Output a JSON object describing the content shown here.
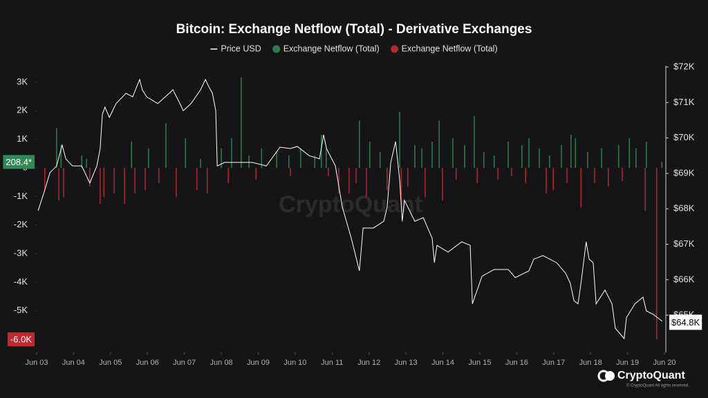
{
  "chart_data": {
    "type": "combo",
    "title": "Bitcoin: Exchange Netflow (Total) - Derivative Exchanges",
    "watermark": "CryptoQuant",
    "brand": "CryptoQuant",
    "copyright": "© CryptoQuant All rights reserved.",
    "xlim": [
      0,
      17
    ],
    "xticks": [
      {
        "value": 0,
        "label": "Jun 03"
      },
      {
        "value": 1,
        "label": "Jun 04"
      },
      {
        "value": 2,
        "label": "Jun 05"
      },
      {
        "value": 3,
        "label": "Jun 06"
      },
      {
        "value": 4,
        "label": "Jun 07"
      },
      {
        "value": 5,
        "label": "Jun 08"
      },
      {
        "value": 6,
        "label": "Jun 09"
      },
      {
        "value": 7,
        "label": "Jun 10"
      },
      {
        "value": 8,
        "label": "Jun 11"
      },
      {
        "value": 9,
        "label": "Jun 12"
      },
      {
        "value": 10,
        "label": "Jun 13"
      },
      {
        "value": 11,
        "label": "Jun 14"
      },
      {
        "value": 12,
        "label": "Jun 15"
      },
      {
        "value": 13,
        "label": "Jun 16"
      },
      {
        "value": 14,
        "label": "Jun 17"
      },
      {
        "value": 15,
        "label": "Jun 18"
      },
      {
        "value": 16,
        "label": "Jun 19"
      },
      {
        "value": 17,
        "label": "Jun 20"
      }
    ],
    "ylim": [
      -6460,
      3580
    ],
    "yticks": [
      {
        "value": 3000,
        "label": "3K"
      },
      {
        "value": 2000,
        "label": "2K"
      },
      {
        "value": 1000,
        "label": "1K"
      },
      0,
      {
        "value": -1000,
        "label": "-1K"
      },
      {
        "value": -2000,
        "label": "-2K"
      },
      {
        "value": -3000,
        "label": "-3K"
      },
      {
        "value": -4000,
        "label": "-4K"
      },
      {
        "value": -5000,
        "label": "-5K"
      }
    ],
    "y2lim": [
      63950,
      72040
    ],
    "y2ticks": [
      {
        "value": 72000,
        "label": "$72K"
      },
      {
        "value": 71000,
        "label": "$71K"
      },
      {
        "value": 70000,
        "label": "$70K"
      },
      {
        "value": 69000,
        "label": "$69K"
      },
      {
        "value": 68000,
        "label": "$68K"
      },
      {
        "value": 67000,
        "label": "$67K"
      },
      {
        "value": 66000,
        "label": "$66K"
      },
      {
        "value": 65000,
        "label": "$65K"
      }
    ],
    "grid": false,
    "badges": [
      {
        "value": 208.4,
        "label": "208.4*",
        "color": "#2e8b57"
      },
      {
        "value": -6000,
        "label": "-6.0K",
        "color": "#c0282e"
      }
    ],
    "y2_badges": [
      {
        "value": 64800,
        "label": "$64.8K",
        "color": "#ffffff"
      }
    ],
    "series": [
      {
        "name": "Price USD",
        "type": "line",
        "axis": "y2",
        "color": "#ffffff",
        "x": [
          0.04,
          0.19,
          0.36,
          0.54,
          0.69,
          0.79,
          0.97,
          1.22,
          1.44,
          1.63,
          1.72,
          1.78,
          1.85,
          1.97,
          2.15,
          2.42,
          2.6,
          2.79,
          2.86,
          2.98,
          3.28,
          3.59,
          3.69,
          3.88,
          3.97,
          4.18,
          4.44,
          4.57,
          4.66,
          4.76,
          4.85,
          4.89,
          5.09,
          5.47,
          5.84,
          6.22,
          6.59,
          6.87,
          7.06,
          7.38,
          7.66,
          7.77,
          7.85,
          8.09,
          8.28,
          8.52,
          8.74,
          8.84,
          9.12,
          9.4,
          9.49,
          9.59,
          9.72,
          9.83,
          9.9,
          9.96,
          10.24,
          10.47,
          10.71,
          10.77,
          10.84,
          11.14,
          11.51,
          11.74,
          11.8,
          12.06,
          12.39,
          12.77,
          12.96,
          13.33,
          13.46,
          13.71,
          14.08,
          14.32,
          14.45,
          14.55,
          14.66,
          14.74,
          14.88,
          14.96,
          15.07,
          15.15,
          15.39,
          15.58,
          15.67,
          15.91,
          15.97,
          16.2,
          16.42,
          16.51,
          16.7,
          16.94
        ],
        "values": [
          67950,
          68430,
          69020,
          69210,
          69800,
          69410,
          69210,
          69210,
          68730,
          69210,
          69700,
          70670,
          70870,
          70580,
          70970,
          71260,
          71160,
          71650,
          71360,
          71160,
          70970,
          71260,
          71360,
          70970,
          70770,
          70970,
          71360,
          71650,
          71450,
          71260,
          70770,
          69210,
          69310,
          69310,
          69310,
          69210,
          69740,
          69700,
          69760,
          69500,
          69410,
          70090,
          69700,
          69210,
          68040,
          67170,
          66250,
          67460,
          67460,
          67650,
          68040,
          69310,
          69900,
          68820,
          67650,
          68240,
          67650,
          67750,
          67170,
          66480,
          66970,
          66780,
          67070,
          66970,
          65320,
          66100,
          66290,
          66290,
          66060,
          66250,
          66580,
          66680,
          66480,
          66190,
          65900,
          65410,
          65320,
          65900,
          67070,
          66580,
          66480,
          65320,
          65710,
          65320,
          64630,
          64340,
          64930,
          65320,
          65510,
          65120,
          65020,
          64830
        ]
      },
      {
        "name": "Exchange Netflow (Total)",
        "type": "bar",
        "color": "#2e7d4f",
        "x": [
          0.54,
          0.66,
          1.22,
          1.35,
          2.57,
          3.03,
          3.5,
          4.03,
          4.44,
          5.0,
          5.28,
          5.54,
          5.75,
          6.09,
          6.5,
          6.83,
          7.15,
          7.53,
          7.71,
          7.84,
          8.74,
          9.02,
          9.3,
          9.83,
          10.24,
          10.43,
          10.71,
          10.9,
          11.27,
          11.59,
          11.85,
          12.11,
          12.39,
          12.77,
          13.14,
          13.33,
          13.61,
          13.89,
          14.21,
          14.47,
          14.59,
          14.92,
          15.3,
          15.76,
          16.05,
          16.23,
          16.51,
          16.93
        ],
        "values": [
          1400,
          800,
          435,
          315,
          920,
          680,
          1570,
          1040,
          315,
          680,
          1040,
          3170,
          435,
          680,
          555,
          435,
          680,
          435,
          1160,
          680,
          1650,
          920,
          555,
          1960,
          800,
          680,
          920,
          1650,
          1040,
          800,
          1820,
          555,
          435,
          920,
          800,
          1040,
          680,
          435,
          800,
          1160,
          1040,
          555,
          680,
          800,
          1040,
          680,
          920,
          208.4
        ]
      },
      {
        "name": "Exchange Netflow (Total)",
        "type": "bar",
        "color": "#b3262e",
        "x": [
          0.22,
          0.6,
          0.73,
          1.44,
          1.72,
          1.82,
          2.1,
          2.38,
          2.66,
          2.94,
          3.31,
          3.78,
          4.34,
          4.62,
          5.19,
          5.94,
          6.87,
          7.9,
          8.18,
          8.46,
          8.65,
          8.93,
          9.49,
          9.87,
          10.05,
          10.52,
          10.99,
          11.36,
          11.93,
          12.49,
          12.86,
          13.24,
          13.8,
          13.99,
          14.36,
          14.74,
          15.11,
          15.48,
          15.86,
          16.48,
          16.79
        ],
        "values": [
          -775,
          -1140,
          -1020,
          -650,
          -1260,
          -1020,
          -900,
          -1260,
          -900,
          -775,
          -530,
          -1020,
          -775,
          -900,
          -530,
          -410,
          -290,
          -290,
          -900,
          -900,
          -530,
          -1020,
          -775,
          -1260,
          -650,
          -1020,
          -1140,
          -410,
          -530,
          -410,
          -290,
          -530,
          -900,
          -775,
          -530,
          -1380,
          -530,
          -650,
          -460,
          -1500,
          -6000
        ]
      }
    ]
  }
}
